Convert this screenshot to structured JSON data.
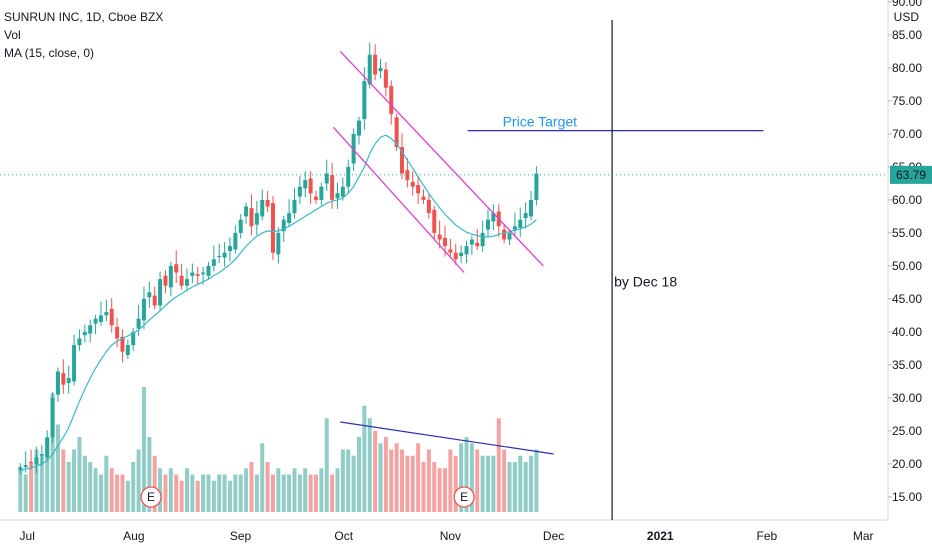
{
  "header": {
    "title": "SUNRUN INC, 1D, Cboe BZX",
    "vol_label": "Vol",
    "ma_label": "MA (15, close, 0)"
  },
  "colors": {
    "up": "#26a69a",
    "down": "#ef5350",
    "vol_up": "#8fcdc6",
    "vol_down": "#f4a3a3",
    "ma": "#3bb8c4",
    "channel": "#e040c8",
    "target_line": "#2a2fb3",
    "vol_trend": "#2a2fb3",
    "last_price_bg": "#26a69a"
  },
  "chart_data": {
    "type": "candlestick",
    "title": "SUNRUN INC, 1D, Cboe BZX",
    "y_axis": {
      "unit": "USD",
      "range": [
        11.5,
        90.0
      ],
      "ticks": [
        15,
        20,
        25,
        30,
        35,
        40,
        45,
        50,
        55,
        60,
        65,
        70,
        75,
        80,
        85,
        90
      ],
      "tick_labels": [
        "15.00",
        "20.00",
        "25.00",
        "30.00",
        "35.00",
        "40.00",
        "45.00",
        "50.00",
        "55.00",
        "60.00",
        "65.00",
        "70.00",
        "75.00",
        "80.00",
        "85.00",
        "90.00"
      ]
    },
    "x_axis": {
      "labels": [
        "Jul",
        "Aug",
        "Sep",
        "Oct",
        "Nov",
        "Dec",
        "2021",
        "Feb",
        "Mar"
      ],
      "label_dates": [
        "2020-07-01",
        "2020-08-01",
        "2020-09-01",
        "2020-10-01",
        "2020-11-01",
        "2020-12-01",
        "2021-01-01",
        "2021-02-01",
        "2021-03-01"
      ]
    },
    "last_price": 63.79,
    "last_price_label": "63.79",
    "price_close_path": [
      19.5,
      19.8,
      20.2,
      21,
      21.5,
      24,
      30,
      34,
      32,
      33,
      38,
      39,
      40,
      41,
      42,
      42.5,
      43,
      41,
      39,
      37,
      38,
      40,
      42,
      45,
      46,
      44,
      48,
      47,
      50,
      49,
      47,
      48,
      49,
      48.5,
      49,
      50,
      51,
      51.5,
      52,
      53,
      55,
      57,
      59,
      56,
      58,
      60,
      59,
      52,
      55,
      57,
      58,
      60,
      62,
      63,
      61,
      60,
      62,
      64,
      60,
      61,
      62,
      65,
      70,
      72,
      78,
      82,
      79,
      80,
      77,
      73,
      68,
      64,
      63,
      62,
      61,
      60,
      58,
      55,
      54,
      53,
      52,
      51,
      52,
      53,
      54,
      53,
      55,
      57,
      58,
      56,
      54,
      55,
      56,
      57,
      58,
      60,
      64
    ],
    "ma_path": [
      19.0,
      19.2,
      19.4,
      19.7,
      20,
      20.5,
      21.5,
      22.8,
      24,
      25.5,
      27.5,
      29.5,
      31.3,
      33,
      34.5,
      35.8,
      37,
      38,
      38.6,
      39,
      39.4,
      39.8,
      40.3,
      41,
      41.8,
      42.5,
      43.2,
      44,
      44.7,
      45.3,
      45.8,
      46.3,
      46.8,
      47.2,
      47.6,
      48,
      48.5,
      49,
      49.6,
      50.2,
      51,
      52,
      53,
      53.8,
      54.5,
      55,
      55.3,
      55.2,
      55.3,
      55.6,
      56,
      56.5,
      57,
      57.5,
      58,
      58.5,
      59,
      59.5,
      59.8,
      60,
      60.3,
      61,
      62,
      63.5,
      65,
      67,
      68.5,
      69.5,
      69.8,
      69.3,
      68.5,
      67.3,
      66,
      64.8,
      63.5,
      62.2,
      61,
      59.8,
      58.8,
      57.8,
      57,
      56.2,
      55.6,
      55.1,
      54.8,
      54.6,
      54.4,
      54.4,
      54.5,
      54.8,
      55,
      55.2,
      55.4,
      55.6,
      55.9,
      56.3,
      57
    ],
    "volume_relative_path": [
      0.35,
      0.3,
      0.4,
      0.5,
      0.45,
      0.6,
      0.95,
      0.7,
      0.5,
      0.4,
      0.5,
      0.6,
      0.45,
      0.4,
      0.35,
      0.3,
      0.45,
      0.35,
      0.3,
      0.3,
      0.25,
      0.4,
      0.5,
      1.0,
      0.6,
      0.45,
      0.35,
      0.3,
      0.35,
      0.3,
      0.25,
      0.35,
      0.3,
      0.25,
      0.3,
      0.3,
      0.25,
      0.3,
      0.3,
      0.25,
      0.3,
      0.3,
      0.35,
      0.4,
      0.3,
      0.55,
      0.4,
      0.3,
      0.35,
      0.3,
      0.3,
      0.35,
      0.3,
      0.35,
      0.3,
      0.3,
      0.35,
      0.75,
      0.3,
      0.35,
      0.5,
      0.5,
      0.45,
      0.6,
      0.85,
      0.75,
      0.65,
      0.55,
      0.6,
      0.5,
      0.55,
      0.5,
      0.45,
      0.45,
      0.55,
      0.4,
      0.5,
      0.4,
      0.35,
      0.35,
      0.5,
      0.45,
      0.55,
      0.6,
      0.55,
      0.5,
      0.45,
      0.45,
      0.45,
      0.75,
      0.5,
      0.4,
      0.4,
      0.45,
      0.4,
      0.45,
      0.5
    ],
    "earnings_markers": [
      {
        "label": "E",
        "date": "2020-08-06"
      },
      {
        "label": "E",
        "date": "2020-11-05"
      }
    ],
    "annotations": {
      "price_target_label": "Price Target",
      "price_target_value": 70.5,
      "deadline_label": "by Dec 18",
      "deadline_date": "2020-12-18"
    },
    "trend_channel": {
      "upper": {
        "from": [
          "2020-09-30",
          82.5
        ],
        "to": [
          "2020-11-28",
          50.0
        ]
      },
      "lower": {
        "from": [
          "2020-09-28",
          71.0
        ],
        "to": [
          "2020-11-05",
          49.0
        ]
      }
    },
    "volume_trend": {
      "from": "2020-09-30",
      "to": "2020-12-01"
    }
  }
}
